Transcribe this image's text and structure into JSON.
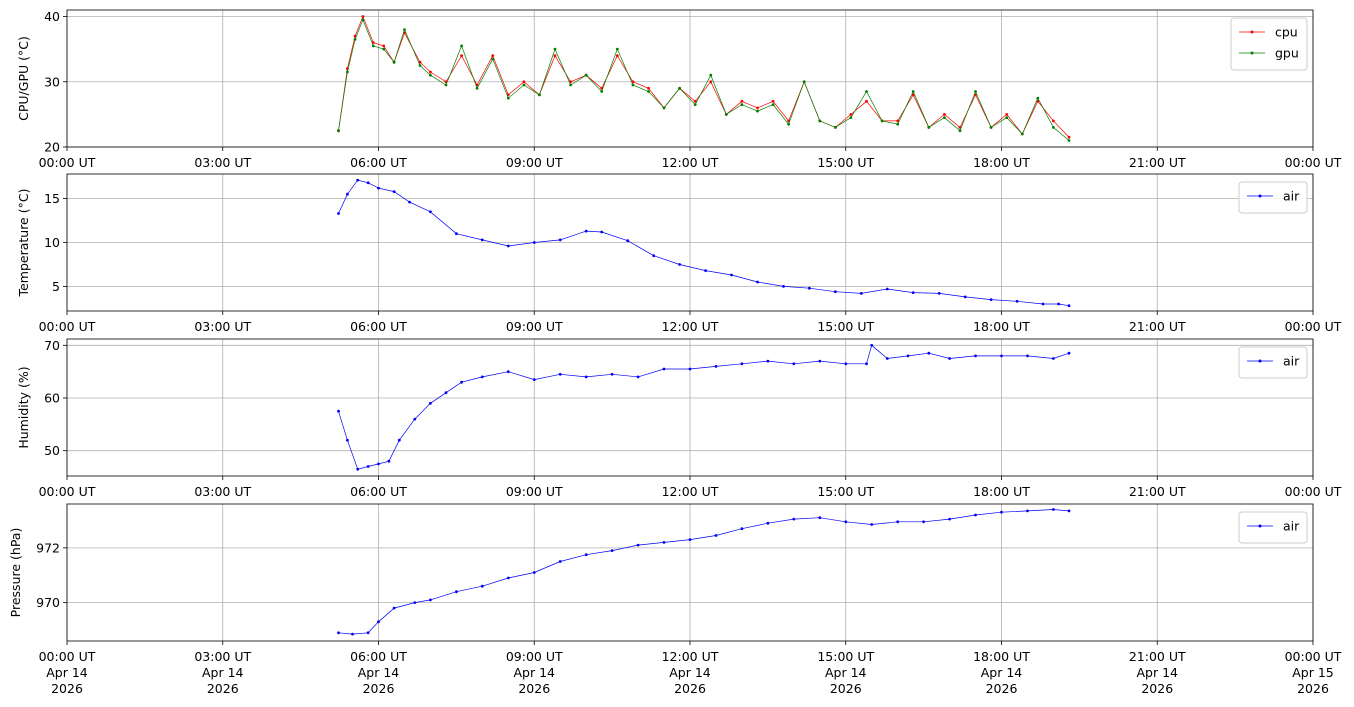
{
  "figure": {
    "x_ticks": [
      {
        "hour": 0,
        "label": "00:00 UT",
        "date": "Apr 14",
        "year": "2026"
      },
      {
        "hour": 3,
        "label": "03:00 UT",
        "date": "Apr 14",
        "year": "2026"
      },
      {
        "hour": 6,
        "label": "06:00 UT",
        "date": "Apr 14",
        "year": "2026"
      },
      {
        "hour": 9,
        "label": "09:00 UT",
        "date": "Apr 14",
        "year": "2026"
      },
      {
        "hour": 12,
        "label": "12:00 UT",
        "date": "Apr 14",
        "year": "2026"
      },
      {
        "hour": 15,
        "label": "15:00 UT",
        "date": "Apr 14",
        "year": "2026"
      },
      {
        "hour": 18,
        "label": "18:00 UT",
        "date": "Apr 14",
        "year": "2026"
      },
      {
        "hour": 21,
        "label": "21:00 UT",
        "date": "Apr 14",
        "year": "2026"
      },
      {
        "hour": 24,
        "label": "00:00 UT",
        "date": "Apr 15",
        "year": "2026"
      }
    ],
    "xlim_hours": [
      0,
      24
    ],
    "grid": true
  },
  "chart_data": [
    {
      "type": "line",
      "ylabel": "CPU/GPU (°C)",
      "ylim": [
        20,
        41
      ],
      "yticks": [
        20,
        30,
        40
      ],
      "legend": "top-right",
      "series": [
        {
          "name": "cpu",
          "color": "#ff0000",
          "x": [
            5.23,
            5.4,
            5.55,
            5.7,
            5.9,
            6.1,
            6.3,
            6.5,
            6.8,
            7.0,
            7.3,
            7.6,
            7.9,
            8.2,
            8.5,
            8.8,
            9.1,
            9.4,
            9.7,
            10.0,
            10.3,
            10.6,
            10.9,
            11.2,
            11.5,
            11.8,
            12.1,
            12.4,
            12.7,
            13.0,
            13.3,
            13.6,
            13.9,
            14.2,
            14.5,
            14.8,
            15.1,
            15.4,
            15.7,
            16.0,
            16.3,
            16.6,
            16.9,
            17.2,
            17.5,
            17.8,
            18.1,
            18.4,
            18.7,
            19.0,
            19.3
          ],
          "y": [
            22.5,
            32,
            37,
            40,
            36,
            35.5,
            33,
            37.5,
            33,
            31.5,
            30,
            34,
            29.5,
            34,
            28,
            30,
            28,
            34,
            30,
            31,
            29,
            34,
            30,
            29,
            26,
            29,
            27,
            30,
            25,
            27,
            26,
            27,
            24,
            30,
            24,
            23,
            25,
            27,
            24,
            24,
            28,
            23,
            25,
            23,
            28,
            23,
            25,
            22,
            27,
            24,
            21.5
          ]
        },
        {
          "name": "gpu",
          "color": "#008000",
          "x": [
            5.23,
            5.4,
            5.55,
            5.7,
            5.9,
            6.1,
            6.3,
            6.5,
            6.8,
            7.0,
            7.3,
            7.6,
            7.9,
            8.2,
            8.5,
            8.8,
            9.1,
            9.4,
            9.7,
            10.0,
            10.3,
            10.6,
            10.9,
            11.2,
            11.5,
            11.8,
            12.1,
            12.4,
            12.7,
            13.0,
            13.3,
            13.6,
            13.9,
            14.2,
            14.5,
            14.8,
            15.1,
            15.4,
            15.7,
            16.0,
            16.3,
            16.6,
            16.9,
            17.2,
            17.5,
            17.8,
            18.1,
            18.4,
            18.7,
            19.0,
            19.3
          ],
          "y": [
            22.5,
            31.5,
            36.5,
            39.5,
            35.5,
            35,
            33,
            38,
            32.5,
            31,
            29.5,
            35.5,
            29,
            33.5,
            27.5,
            29.5,
            28,
            35,
            29.5,
            31,
            28.5,
            35,
            29.5,
            28.5,
            26,
            29,
            26.5,
            31,
            25,
            26.5,
            25.5,
            26.5,
            23.5,
            30,
            24,
            23,
            24.5,
            28.5,
            24,
            23.5,
            28.5,
            23,
            24.5,
            22.5,
            28.5,
            23,
            24.5,
            22,
            27.5,
            23,
            21
          ]
        }
      ]
    },
    {
      "type": "line",
      "ylabel": "Temperature (°C)",
      "ylim": [
        2.2,
        17.8
      ],
      "yticks": [
        5,
        10,
        15
      ],
      "legend": "top-right",
      "series": [
        {
          "name": "air",
          "color": "#0000ff",
          "x": [
            5.23,
            5.4,
            5.6,
            5.8,
            6.0,
            6.3,
            6.6,
            7.0,
            7.5,
            8.0,
            8.5,
            9.0,
            9.5,
            10.0,
            10.3,
            10.8,
            11.3,
            11.8,
            12.3,
            12.8,
            13.3,
            13.8,
            14.3,
            14.8,
            15.3,
            15.8,
            16.3,
            16.8,
            17.3,
            17.8,
            18.3,
            18.8,
            19.1,
            19.3
          ],
          "y": [
            13.3,
            15.5,
            17.1,
            16.8,
            16.2,
            15.8,
            14.6,
            13.5,
            11.0,
            10.3,
            9.6,
            10.0,
            10.3,
            11.3,
            11.2,
            10.2,
            8.5,
            7.5,
            6.8,
            6.3,
            5.5,
            5.0,
            4.8,
            4.4,
            4.2,
            4.7,
            4.3,
            4.2,
            3.8,
            3.5,
            3.3,
            3.0,
            3.0,
            2.8
          ]
        }
      ]
    },
    {
      "type": "line",
      "ylabel": "Humidity (%)",
      "ylim": [
        45.2,
        71.2
      ],
      "yticks": [
        50,
        60,
        70
      ],
      "legend": "top-right",
      "series": [
        {
          "name": "air",
          "color": "#0000ff",
          "x": [
            5.23,
            5.4,
            5.6,
            5.8,
            6.0,
            6.2,
            6.4,
            6.7,
            7.0,
            7.3,
            7.6,
            8.0,
            8.5,
            9.0,
            9.5,
            10.0,
            10.5,
            11.0,
            11.5,
            12.0,
            12.5,
            13.0,
            13.5,
            14.0,
            14.5,
            15.0,
            15.4,
            15.5,
            15.8,
            16.2,
            16.6,
            17.0,
            17.5,
            18.0,
            18.5,
            19.0,
            19.3
          ],
          "y": [
            57.5,
            52.0,
            46.5,
            47.0,
            47.5,
            48.0,
            52.0,
            56.0,
            59.0,
            61.0,
            63.0,
            64.0,
            65.0,
            63.5,
            64.5,
            64.0,
            64.5,
            64.0,
            65.5,
            65.5,
            66.0,
            66.5,
            67.0,
            66.5,
            67.0,
            66.5,
            66.5,
            70.0,
            67.5,
            68.0,
            68.5,
            67.5,
            68.0,
            68.0,
            68.0,
            67.5,
            68.5
          ]
        }
      ]
    },
    {
      "type": "line",
      "ylabel": "Pressure (hPa)",
      "ylim": [
        968.6,
        973.6
      ],
      "yticks": [
        970,
        972
      ],
      "legend": "top-right",
      "series": [
        {
          "name": "air",
          "color": "#0000ff",
          "x": [
            5.23,
            5.5,
            5.8,
            6.0,
            6.3,
            6.7,
            7.0,
            7.5,
            8.0,
            8.5,
            9.0,
            9.5,
            10.0,
            10.5,
            11.0,
            11.5,
            12.0,
            12.5,
            13.0,
            13.5,
            14.0,
            14.5,
            15.0,
            15.5,
            16.0,
            16.5,
            17.0,
            17.5,
            18.0,
            18.5,
            19.0,
            19.3
          ],
          "y": [
            968.9,
            968.85,
            968.9,
            969.3,
            969.8,
            970.0,
            970.1,
            970.4,
            970.6,
            970.9,
            971.1,
            971.5,
            971.75,
            971.9,
            972.1,
            972.2,
            972.3,
            972.45,
            972.7,
            972.9,
            973.05,
            973.1,
            972.95,
            972.85,
            972.95,
            972.95,
            973.05,
            973.2,
            973.3,
            973.35,
            973.4,
            973.35
          ]
        }
      ]
    }
  ]
}
